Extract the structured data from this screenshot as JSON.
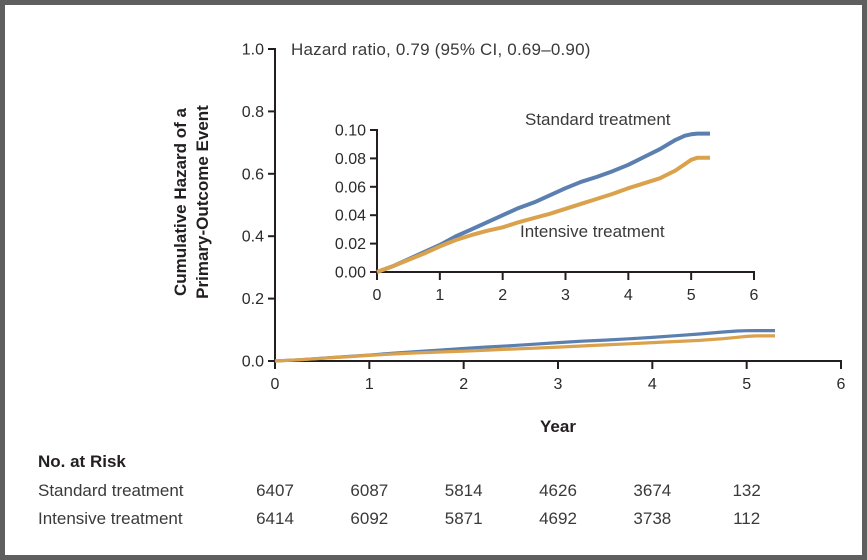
{
  "frame": {
    "border_color": "#5f5f5f",
    "background": "#ffffff"
  },
  "chart_data": {
    "type": "line",
    "annotation": "Hazard ratio, 0.79 (95% CI, 0.69–0.90)",
    "xlabel": "Year",
    "ylabel": "Cumulative Hazard of a Primary-Outcome Event",
    "ylabel_lines": [
      "Cumulative Hazard of a",
      "Primary-Outcome Event"
    ],
    "axis_color": "#231f20",
    "tick_text_color": "#2b2b2b",
    "main": {
      "xlim": [
        0,
        6
      ],
      "ylim": [
        0,
        1.0
      ],
      "xticks": [
        "0",
        "1",
        "2",
        "3",
        "4",
        "5",
        "6"
      ],
      "yticks": [
        "0.0",
        "0.2",
        "0.4",
        "0.6",
        "0.8",
        "1.0"
      ]
    },
    "inset": {
      "xlim": [
        0,
        6
      ],
      "ylim": [
        0,
        0.1
      ],
      "xticks": [
        "0",
        "1",
        "2",
        "3",
        "4",
        "5",
        "6"
      ],
      "yticks": [
        "0.00",
        "0.02",
        "0.04",
        "0.06",
        "0.08",
        "0.10"
      ]
    },
    "series": [
      {
        "name": "Standard treatment",
        "color": "#5B7FAF",
        "x": [
          0,
          0.25,
          0.5,
          0.75,
          1,
          1.25,
          1.5,
          1.75,
          2,
          2.25,
          2.5,
          2.75,
          3,
          3.25,
          3.5,
          3.75,
          4,
          4.25,
          4.5,
          4.75,
          4.9,
          5,
          5.1,
          5.3
        ],
        "y": [
          0,
          0.004,
          0.009,
          0.014,
          0.019,
          0.025,
          0.03,
          0.035,
          0.04,
          0.045,
          0.049,
          0.054,
          0.059,
          0.0635,
          0.067,
          0.071,
          0.0755,
          0.081,
          0.0865,
          0.093,
          0.096,
          0.097,
          0.0975,
          0.0975
        ]
      },
      {
        "name": "Intensive treatment",
        "color": "#DAA24D",
        "x": [
          0,
          0.25,
          0.5,
          0.75,
          1,
          1.25,
          1.5,
          1.75,
          2,
          2.25,
          2.5,
          2.75,
          3,
          3.25,
          3.5,
          3.75,
          4,
          4.25,
          4.5,
          4.75,
          4.9,
          5,
          5.1,
          5.3
        ],
        "y": [
          0,
          0.004,
          0.0085,
          0.013,
          0.018,
          0.0225,
          0.026,
          0.029,
          0.0315,
          0.035,
          0.038,
          0.041,
          0.0445,
          0.048,
          0.0515,
          0.055,
          0.059,
          0.0625,
          0.066,
          0.0715,
          0.076,
          0.079,
          0.0805,
          0.0805
        ]
      }
    ],
    "risk_table": {
      "title": "No. at Risk",
      "rows": [
        {
          "label": "Standard treatment",
          "values": [
            "6407",
            "6087",
            "5814",
            "4626",
            "3674",
            "132"
          ]
        },
        {
          "label": "Intensive treatment",
          "values": [
            "6414",
            "6092",
            "5871",
            "4692",
            "3738",
            "112"
          ]
        }
      ]
    }
  }
}
